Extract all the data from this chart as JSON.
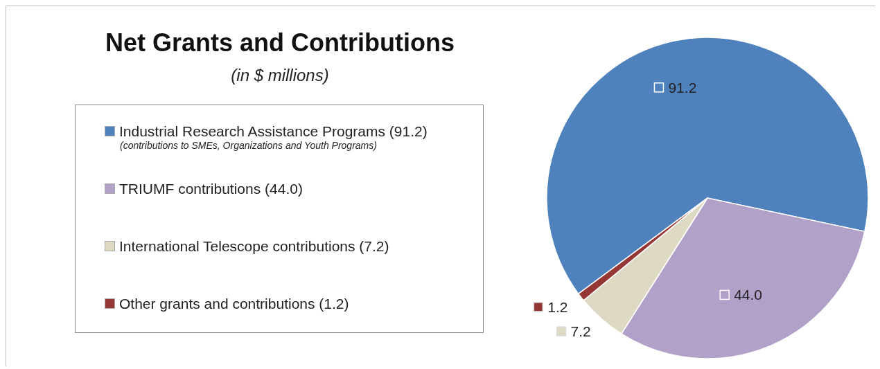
{
  "chart_data": {
    "type": "pie",
    "title": "Net Grants and Contributions",
    "subtitle": "(in $ millions)",
    "categories": [
      "Industrial Research Assistance Programs (91.2)",
      "TRIUMF contributions (44.0)",
      "International Telescope contributions (7.2)",
      "Other grants and contributions (1.2)"
    ],
    "values": [
      91.2,
      44.0,
      7.2,
      1.2
    ],
    "value_labels": [
      "91.2",
      "44.0",
      "7.2",
      "1.2"
    ],
    "colors": [
      "#4f81bd",
      "#b1a0c7",
      "#ddd9c3",
      "#953735"
    ],
    "annotations": [
      "(contributions  to SMEs, Organizations and Youth Programs)"
    ],
    "legend": "left"
  }
}
